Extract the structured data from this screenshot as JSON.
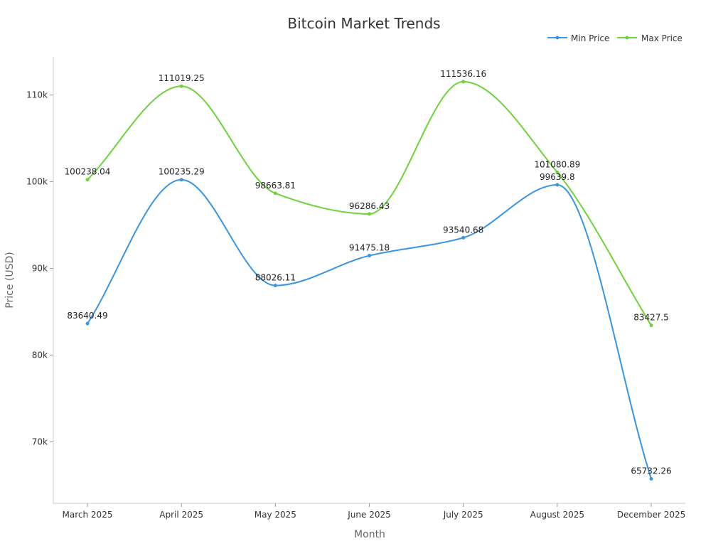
{
  "chart_data": {
    "type": "line",
    "title": "Bitcoin Market Trends",
    "xlabel": "Month",
    "ylabel": "Price (USD)",
    "categories": [
      "March 2025",
      "April 2025",
      "May 2025",
      "June 2025",
      "July 2025",
      "August 2025",
      "December 2025"
    ],
    "series": [
      {
        "name": "Min Price",
        "color": "#3a94e0",
        "values": [
          83640.49,
          100235.29,
          88026.11,
          91475.18,
          93540.68,
          99639.8,
          65732.26
        ]
      },
      {
        "name": "Max Price",
        "color": "#6cd33a",
        "values": [
          100238.04,
          111019.25,
          98663.81,
          96286.43,
          111536.16,
          101080.89,
          83427.5
        ]
      }
    ],
    "yticks": [
      70000,
      80000,
      90000,
      100000,
      110000
    ],
    "ytick_labels": [
      "70k",
      "80k",
      "90k",
      "100k",
      "110k"
    ],
    "ylim": [
      62900,
      114400
    ],
    "grid": false,
    "legend_position": "top-right"
  }
}
